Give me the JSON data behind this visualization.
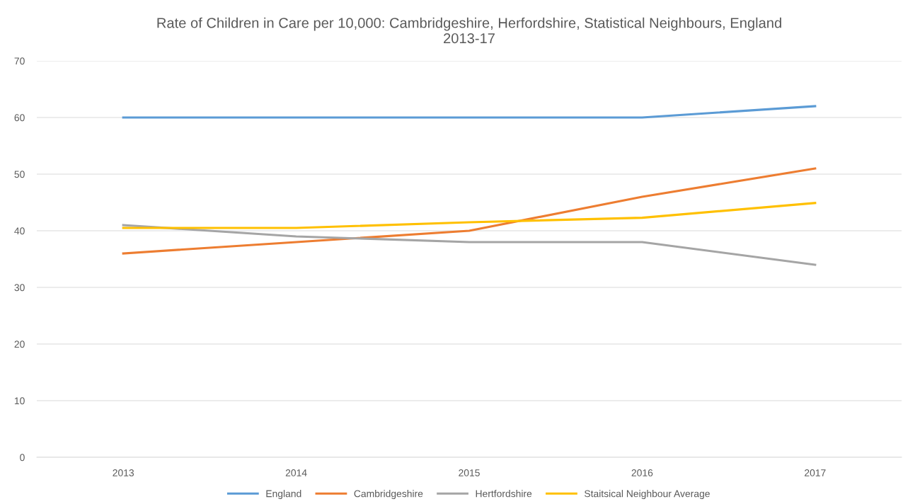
{
  "chart_data": {
    "type": "line",
    "title": "Rate of Children in Care per 10,000: Cambridgeshire, Herfordshire, Statistical Neighbours, England\n2013-17",
    "categories": [
      "2013",
      "2014",
      "2015",
      "2016",
      "2017"
    ],
    "series": [
      {
        "name": "England",
        "color": "#5b9bd5",
        "values": [
          60,
          60,
          60,
          60,
          62
        ]
      },
      {
        "name": "Cambridgeshire",
        "color": "#ed7d31",
        "values": [
          36,
          38,
          40,
          46,
          51
        ]
      },
      {
        "name": "Hertfordshire",
        "color": "#a5a5a5",
        "values": [
          41,
          39,
          38,
          38,
          34
        ]
      },
      {
        "name": "Staitsical Neighbour Average",
        "color": "#ffc000",
        "values": [
          40.5,
          40.5,
          41.5,
          42.3,
          44.9
        ]
      }
    ],
    "ylim": [
      0,
      70
    ],
    "yticks": [
      0,
      10,
      20,
      30,
      40,
      50,
      60,
      70
    ],
    "grid": "y",
    "legend": "bottom",
    "marker": "none",
    "line_style": "solid"
  }
}
